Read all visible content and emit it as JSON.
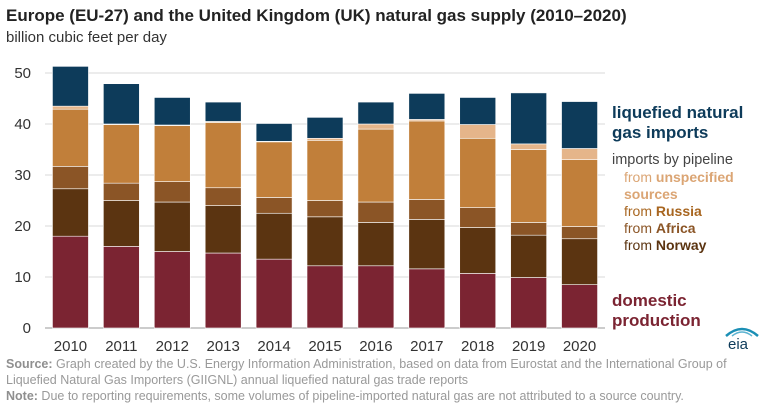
{
  "header": {
    "title": "Europe (EU-27) and the United Kingdom (UK) natural gas supply (2010–2020)",
    "subtitle": "billion cubic feet per day"
  },
  "legend": {
    "lng": [
      "liquefied natural",
      "gas imports"
    ],
    "pipeline_header": "imports by pipeline",
    "unspecified": {
      "prefix": "from ",
      "name": [
        "unspecified",
        "sources"
      ]
    },
    "russia": {
      "prefix": "from ",
      "name": "Russia"
    },
    "africa": {
      "prefix": "from ",
      "name": "Africa"
    },
    "norway": {
      "prefix": "from ",
      "name": "Norway"
    },
    "domestic": [
      "domestic",
      "production"
    ]
  },
  "footer": {
    "source_label": "Source:",
    "source_text": " Graph created by the U.S. Energy Information Administration, based on data from Eurostat and the International Group of Liquefied Natural Gas Importers (GIIGNL) annual liquefied natural gas trade reports",
    "note_label": "Note:",
    "note_text": " Due to reporting requirements, some volumes of pipeline-imported natural gas are not attributed to a source country."
  },
  "logo_text": "eia",
  "colors": {
    "domestic": "#7b2432",
    "norway": "#5b3411",
    "africa": "#8b5526",
    "russia": "#c17f3a",
    "unspecified": "#e5b58a",
    "lng": "#0d3b5a",
    "text_domestic": "#7b2432",
    "text_lng": "#0d3b5a",
    "text_norway": "#5b3411",
    "text_africa": "#8b5526",
    "text_russia": "#a86620",
    "text_unspecified": "#dba574"
  },
  "chart_data": {
    "type": "bar",
    "stacked": true,
    "categories": [
      "2010",
      "2011",
      "2012",
      "2013",
      "2014",
      "2015",
      "2016",
      "2017",
      "2018",
      "2019",
      "2020"
    ],
    "ylim": [
      0,
      50
    ],
    "yticks": [
      0,
      10,
      20,
      30,
      40,
      50
    ],
    "grid": true,
    "series": [
      {
        "key": "domestic",
        "name": "domestic production",
        "values": [
          18.0,
          16.0,
          15.0,
          14.7,
          13.5,
          12.2,
          12.2,
          11.6,
          10.7,
          9.9,
          8.5
        ]
      },
      {
        "key": "norway",
        "name": "from Norway",
        "values": [
          9.3,
          9.0,
          9.7,
          9.3,
          9.0,
          9.6,
          8.5,
          9.7,
          9.0,
          8.3,
          9.0
        ]
      },
      {
        "key": "africa",
        "name": "from Africa",
        "values": [
          4.4,
          3.4,
          4.0,
          3.5,
          3.1,
          3.2,
          4.0,
          3.9,
          3.9,
          2.5,
          2.4
        ]
      },
      {
        "key": "russia",
        "name": "from Russia",
        "values": [
          11.2,
          11.5,
          11.0,
          12.8,
          10.9,
          11.8,
          14.3,
          15.4,
          13.6,
          14.3,
          13.1
        ]
      },
      {
        "key": "unspecified",
        "name": "from unspecified sources",
        "values": [
          0.6,
          0.1,
          0.1,
          0.2,
          0.1,
          0.4,
          1.0,
          0.3,
          2.7,
          1.1,
          2.2
        ]
      },
      {
        "key": "lng",
        "name": "liquefied natural gas imports",
        "values": [
          7.8,
          7.9,
          5.4,
          3.8,
          3.5,
          4.1,
          4.3,
          5.1,
          5.3,
          10.0,
          9.2
        ]
      }
    ]
  }
}
